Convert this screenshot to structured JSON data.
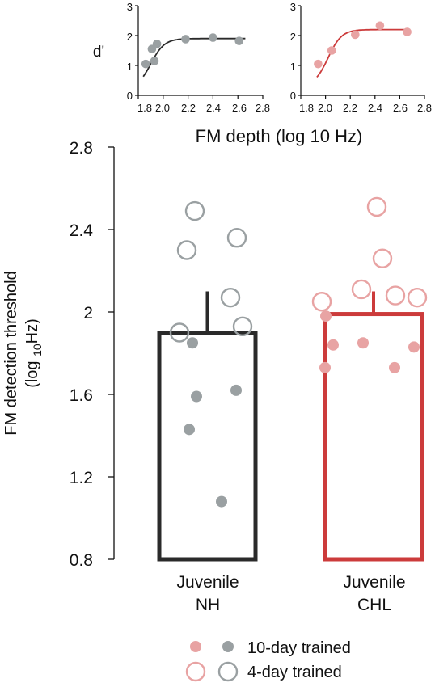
{
  "colors": {
    "nh_line": "#2a2a2a",
    "nh_marker": "#9aa0a2",
    "chl_line": "#cc3b3b",
    "chl_marker": "#e8a3a3",
    "axis": "#111111"
  },
  "chart_data": [
    {
      "type": "scatter",
      "panel": "inset-nh",
      "ylabel": "d'",
      "xlim": [
        1.8,
        2.8
      ],
      "ylim": [
        0,
        3
      ],
      "xticks": [
        "1.8",
        "2.0",
        "2.2",
        "2.4",
        "2.6",
        "2.8"
      ],
      "yticks": [
        "0",
        "1",
        "2",
        "3"
      ],
      "points": [
        {
          "x": 1.86,
          "y": 1.05
        },
        {
          "x": 1.91,
          "y": 1.55
        },
        {
          "x": 1.93,
          "y": 1.15
        },
        {
          "x": 1.95,
          "y": 1.72
        },
        {
          "x": 2.18,
          "y": 1.88
        },
        {
          "x": 2.4,
          "y": 1.93
        },
        {
          "x": 2.61,
          "y": 1.82
        }
      ],
      "fit": {
        "low": 0.2,
        "high": 1.9,
        "mid": 1.9,
        "slope": 0.055
      },
      "fit_color": "#2a2a2a",
      "marker_color": "#9aa0a2"
    },
    {
      "type": "scatter",
      "panel": "inset-chl",
      "xlim": [
        1.8,
        2.8
      ],
      "ylim": [
        0,
        3
      ],
      "xticks": [
        "1.8",
        "2.0",
        "2.2",
        "2.4",
        "2.6",
        "2.8"
      ],
      "yticks": [
        "0",
        "1",
        "2",
        "3"
      ],
      "points": [
        {
          "x": 1.94,
          "y": 1.05
        },
        {
          "x": 2.05,
          "y": 1.5
        },
        {
          "x": 2.24,
          "y": 2.03
        },
        {
          "x": 2.44,
          "y": 2.33
        },
        {
          "x": 2.66,
          "y": 2.12
        }
      ],
      "fit": {
        "low": 0.3,
        "high": 2.2,
        "mid": 2.02,
        "slope": 0.055
      },
      "fit_color": "#cc3b3b",
      "marker_color": "#e8a3a3"
    },
    {
      "type": "bar",
      "xlabel_shared_insets": "FM depth (log 10 Hz)",
      "ylabel_line1": "FM detection threshold",
      "ylabel_line2_prefix": "(log ",
      "ylabel_line2_sub": "10",
      "ylabel_line2_suffix": "Hz)",
      "ylim": [
        0.8,
        2.8
      ],
      "yticks": [
        "0.8",
        "1.2",
        "1.6",
        "2",
        "2.4",
        "2.8"
      ],
      "categories": [
        {
          "line1": "Juvenile",
          "line2": "NH"
        },
        {
          "line1": "Juvenile",
          "line2": "CHL"
        }
      ],
      "bars": [
        {
          "value": 1.9,
          "error_top": 2.1,
          "ten_day": [
            1.85,
            1.59,
            1.43,
            1.62,
            1.08
          ],
          "four_day": [
            2.49,
            2.3,
            2.36,
            1.9,
            2.07,
            1.93
          ]
        },
        {
          "value": 1.99,
          "error_top": 2.1,
          "ten_day": [
            1.98,
            1.84,
            1.73,
            1.85,
            1.73,
            1.83
          ],
          "four_day": [
            2.51,
            2.26,
            2.11,
            2.05,
            2.08,
            2.07
          ]
        }
      ],
      "legend": {
        "ten_day_label": "10-day trained",
        "four_day_label": "4-day trained",
        "placement": "bottom"
      }
    }
  ]
}
